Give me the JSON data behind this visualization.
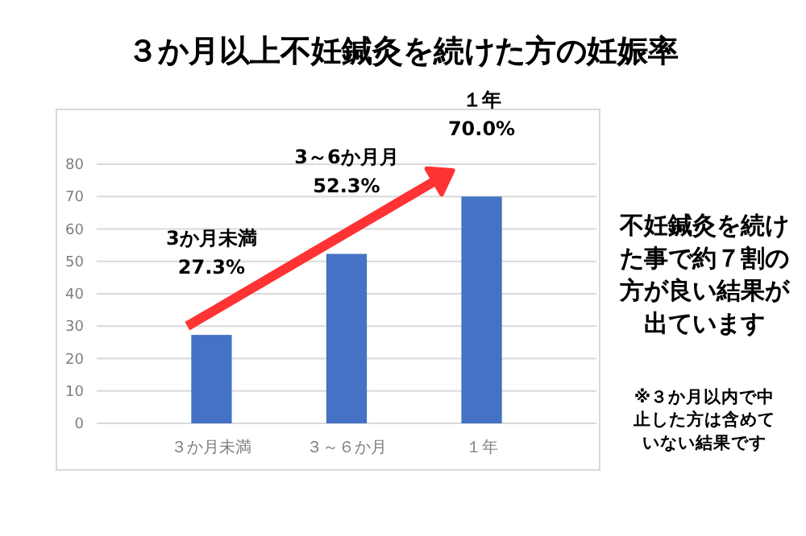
{
  "chart_data": {
    "type": "bar",
    "title": "３か月以上不妊鍼灸を続けた方の妊娠率",
    "categories": [
      "３か月未満",
      "３～６か月",
      "１年"
    ],
    "values": [
      27.3,
      52.3,
      70.0
    ],
    "color": "#4472c4",
    "value_labels": [
      "27.3%",
      "52.3%",
      "70.0%"
    ],
    "ylim": [
      0,
      80
    ],
    "yticks": [
      0,
      10,
      20,
      30,
      40,
      50,
      60,
      70,
      80
    ],
    "grid": "y",
    "annotations": [
      "3か月未満",
      "3～6か月月",
      "１年",
      "不妊鍼灸を続けた事で約７割の方が良い結果が出ています",
      "※３か月以内で中止した方は含めていない結果です"
    ]
  }
}
